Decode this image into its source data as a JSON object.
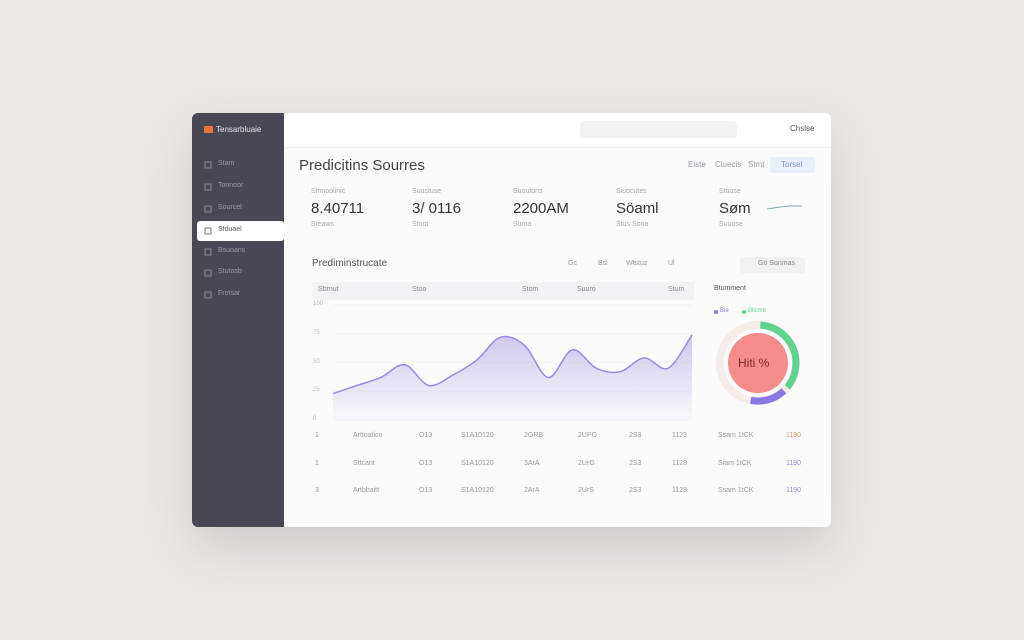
{
  "sidebar": {
    "brand": "Tensarbluaie",
    "nav": [
      "Stam",
      "Tonnoor",
      "Sourcel",
      "Sfduael",
      "Bsuoans",
      "Stutosb",
      "Frotsar"
    ]
  },
  "topbar": {
    "user": "Chslse"
  },
  "header": {
    "title": "Predicitins Sourres",
    "actions": [
      "Elste",
      "Cluecis",
      "Stmt"
    ],
    "button": "Torsel"
  },
  "kpis": [
    {
      "label": "Shmoolinic",
      "value": "8.40711",
      "sub": "Steaws"
    },
    {
      "label": "Suostuse",
      "value": "3/ 0116",
      "sub": "Stoot"
    },
    {
      "label": "Suoutons",
      "value": "2200AM",
      "sub": "Suma"
    },
    {
      "label": "Siuocutes",
      "value": "Söaml",
      "sub": "Stus Sona"
    },
    {
      "label": "Stuose",
      "value": "Søm",
      "sub": "Suuose"
    }
  ],
  "chart_data": {
    "type": "area",
    "title": "Prediminstrucate",
    "filters": [
      "Gc",
      "Bsl",
      "Wtstuz",
      "Ul"
    ],
    "button": "Gö Sonmas",
    "columns": [
      "Sbrnut",
      "Stoo",
      "Stom",
      "Suuro",
      "Stum"
    ],
    "ylim": [
      0,
      100
    ],
    "yticks": [
      0,
      25,
      50,
      75,
      100
    ],
    "color": "#9b8ae0",
    "values": [
      23,
      30,
      37,
      48,
      30,
      39,
      52,
      72,
      65,
      37,
      61,
      45,
      42,
      54,
      45,
      74
    ]
  },
  "donut": {
    "type": "pie",
    "title": "Btumment",
    "center": "Hiti %",
    "series": [
      {
        "name": "Blicmtr",
        "color": "#5fd48f",
        "value": 35
      },
      {
        "name": "Ble",
        "color": "#8a78e6",
        "value": 15
      }
    ]
  },
  "table": {
    "rows": [
      [
        "1",
        "Arttoatico",
        "O13",
        "S1A10120",
        "2GRB",
        "2UPG",
        "2S3",
        "1123",
        "Ssam 1tCK",
        "1190"
      ],
      [
        "1",
        "Sttcant",
        "O13",
        "S1A10120",
        "3ArA",
        "2UrG",
        "2S3",
        "1128",
        "Siam 1tCK",
        "1190"
      ],
      [
        "3",
        "Artbbaitt",
        "O13",
        "S1A10120",
        "2ArA",
        "2UrS",
        "2S3",
        "1128",
        "Ssam 1tCK",
        "1190"
      ]
    ]
  }
}
